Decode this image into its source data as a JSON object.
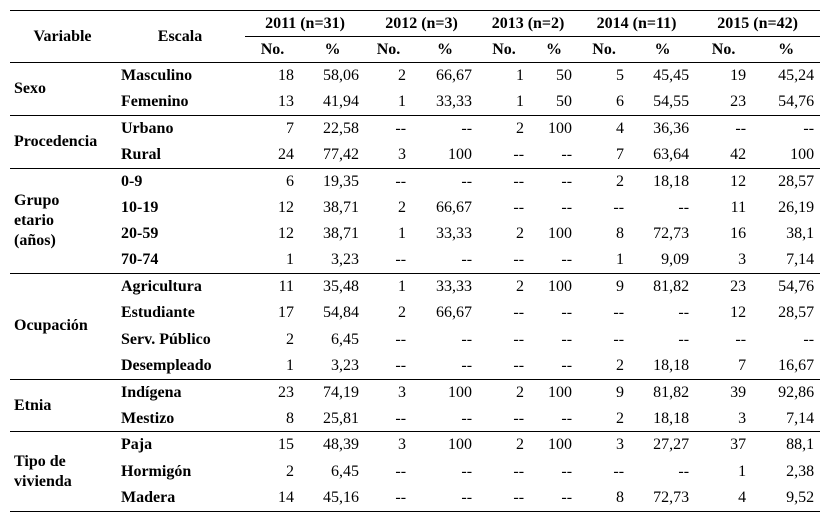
{
  "header": {
    "variable": "Variable",
    "escala": "Escala",
    "years": [
      "2011 (n=31)",
      "2012 (n=3)",
      "2013 (n=2)",
      "2014 (n=11)",
      "2015 (n=42)"
    ],
    "subheaders": [
      "No.",
      "%",
      "No.",
      "%",
      "No.",
      "%",
      "No.",
      "%",
      "No.",
      "%"
    ]
  },
  "groups": [
    {
      "variable": "Sexo",
      "rows": [
        [
          "Masculino",
          "18",
          "58,06",
          "2",
          "66,67",
          "1",
          "50",
          "5",
          "45,45",
          "19",
          "45,24"
        ],
        [
          "Femenino",
          "13",
          "41,94",
          "1",
          "33,33",
          "1",
          "50",
          "6",
          "54,55",
          "23",
          "54,76"
        ]
      ]
    },
    {
      "variable": "Procedencia",
      "rows": [
        [
          "Urbano",
          "7",
          "22,58",
          "--",
          "--",
          "2",
          "100",
          "4",
          "36,36",
          "--",
          "--"
        ],
        [
          "Rural",
          "24",
          "77,42",
          "3",
          "100",
          "--",
          "--",
          "7",
          "63,64",
          "42",
          "100"
        ]
      ]
    },
    {
      "variable": "Grupo\netario\n(años)",
      "rows": [
        [
          "0-9",
          "6",
          "19,35",
          "--",
          "--",
          "--",
          "--",
          "2",
          "18,18",
          "12",
          "28,57"
        ],
        [
          "10-19",
          "12",
          "38,71",
          "2",
          "66,67",
          "--",
          "--",
          "--",
          "--",
          "11",
          "26,19"
        ],
        [
          "20-59",
          "12",
          "38,71",
          "1",
          "33,33",
          "2",
          "100",
          "8",
          "72,73",
          "16",
          "38,1"
        ],
        [
          "70-74",
          "1",
          "3,23",
          "--",
          "--",
          "--",
          "--",
          "1",
          "9,09",
          "3",
          "7,14"
        ]
      ]
    },
    {
      "variable": "Ocupación",
      "rows": [
        [
          "Agricultura",
          "11",
          "35,48",
          "1",
          "33,33",
          "2",
          "100",
          "9",
          "81,82",
          "23",
          "54,76"
        ],
        [
          "Estudiante",
          "17",
          "54,84",
          "2",
          "66,67",
          "--",
          "--",
          "--",
          "--",
          "12",
          "28,57"
        ],
        [
          "Serv. Público",
          "2",
          "6,45",
          "--",
          "--",
          "--",
          "--",
          "--",
          "--",
          "--",
          "--"
        ],
        [
          "Desempleado",
          "1",
          "3,23",
          "--",
          "--",
          "--",
          "--",
          "2",
          "18,18",
          "7",
          "16,67"
        ]
      ]
    },
    {
      "variable": "Etnia",
      "rows": [
        [
          "Indígena",
          "23",
          "74,19",
          "3",
          "100",
          "2",
          "100",
          "9",
          "81,82",
          "39",
          "92,86"
        ],
        [
          "Mestizo",
          "8",
          "25,81",
          "--",
          "--",
          "--",
          "--",
          "2",
          "18,18",
          "3",
          "7,14"
        ]
      ]
    },
    {
      "variable": "Tipo de\nvivienda",
      "rows": [
        [
          "Paja",
          "15",
          "48,39",
          "3",
          "100",
          "2",
          "100",
          "3",
          "27,27",
          "37",
          "88,1"
        ],
        [
          "Hormigón",
          "2",
          "6,45",
          "--",
          "--",
          "--",
          "--",
          "--",
          "--",
          "1",
          "2,38"
        ],
        [
          "Madera",
          "14",
          "45,16",
          "--",
          "--",
          "--",
          "--",
          "8",
          "72,73",
          "4",
          "9,52"
        ]
      ]
    }
  ]
}
